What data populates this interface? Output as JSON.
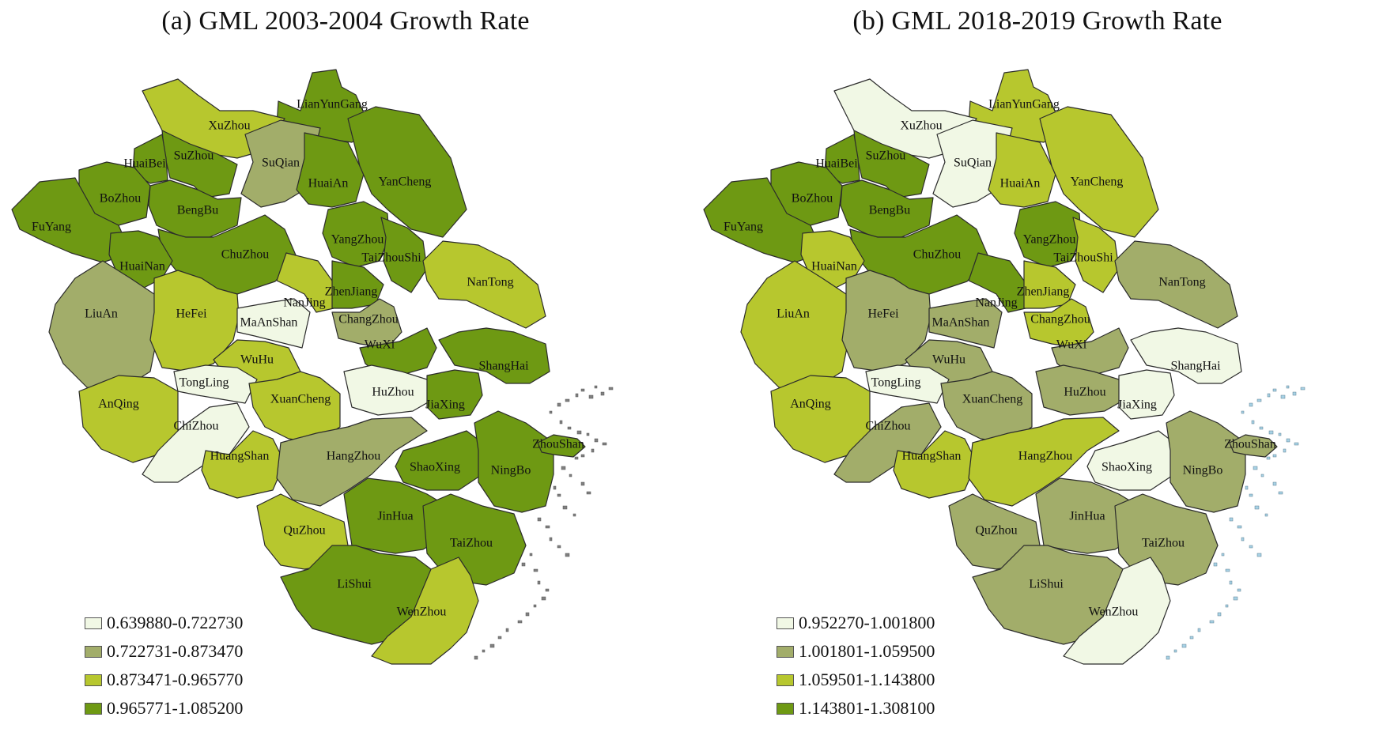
{
  "colors": {
    "c1": "#f1f8e5",
    "c2": "#a2ad6a",
    "c3": "#b7c72e",
    "c4": "#6e9913",
    "border": "#2b2b2b",
    "island_a": "#808080",
    "island_b": "#a8d2e6"
  },
  "panels": [
    {
      "title": "(a) GML 2003-2004 Growth Rate",
      "legend": [
        {
          "label": "0.639880-0.722730",
          "color": "c1"
        },
        {
          "label": "0.722731-0.873470",
          "color": "c2"
        },
        {
          "label": "0.873471-0.965770",
          "color": "c3"
        },
        {
          "label": "0.965771-1.085200",
          "color": "c4"
        }
      ],
      "cities": {
        "LianYunGang": "c4",
        "XuZhou": "c3",
        "SuQian": "c2",
        "SuZhou": "c4",
        "HuaiBei": "c4",
        "BoZhou": "c4",
        "BengBu": "c4",
        "HuaiAn": "c4",
        "YanCheng": "c4",
        "FuYang": "c4",
        "ChuZhou": "c4",
        "YangZhou": "c4",
        "TaiZhouShi": "c4",
        "HuaiNan": "c4",
        "LiuAn": "c2",
        "HeFei": "c3",
        "NanJing": "c3",
        "ZhenJiang": "c4",
        "NanTong": "c3",
        "MaAnShan": "c1",
        "ChangZhou": "c2",
        "WuXi": "c4",
        "WuHu": "c3",
        "ShangHai": "c4",
        "TongLing": "c1",
        "AnQing": "c3",
        "XuanCheng": "c3",
        "HuZhou": "c1",
        "JiaXing": "c4",
        "ChiZhou": "c1",
        "HuangShan": "c3",
        "HangZhou": "c2",
        "ShaoXing": "c4",
        "NingBo": "c4",
        "ZhouShan": "c4",
        "QuZhou": "c3",
        "JinHua": "c4",
        "TaiZhou": "c4",
        "LiShui": "c4",
        "WenZhou": "c3"
      }
    },
    {
      "title": "(b) GML 2018-2019 Growth Rate",
      "legend": [
        {
          "label": "0.952270-1.001800",
          "color": "c1"
        },
        {
          "label": "1.001801-1.059500",
          "color": "c2"
        },
        {
          "label": "1.059501-1.143800",
          "color": "c3"
        },
        {
          "label": "1.143801-1.308100",
          "color": "c4"
        }
      ],
      "cities": {
        "LianYunGang": "c3",
        "XuZhou": "c1",
        "SuQian": "c1",
        "SuZhou": "c4",
        "HuaiBei": "c4",
        "BoZhou": "c4",
        "BengBu": "c4",
        "HuaiAn": "c3",
        "YanCheng": "c3",
        "FuYang": "c4",
        "ChuZhou": "c4",
        "YangZhou": "c4",
        "TaiZhouShi": "c3",
        "HuaiNan": "c3",
        "LiuAn": "c3",
        "HeFei": "c2",
        "NanJing": "c4",
        "ZhenJiang": "c3",
        "NanTong": "c2",
        "MaAnShan": "c2",
        "ChangZhou": "c3",
        "WuXi": "c2",
        "WuHu": "c2",
        "ShangHai": "c1",
        "TongLing": "c1",
        "AnQing": "c3",
        "XuanCheng": "c2",
        "HuZhou": "c2",
        "JiaXing": "c1",
        "ChiZhou": "c2",
        "HuangShan": "c3",
        "HangZhou": "c3",
        "ShaoXing": "c1",
        "NingBo": "c2",
        "ZhouShan": "c2",
        "QuZhou": "c2",
        "JinHua": "c2",
        "TaiZhou": "c2",
        "LiShui": "c2",
        "WenZhou": "c1"
      }
    }
  ]
}
